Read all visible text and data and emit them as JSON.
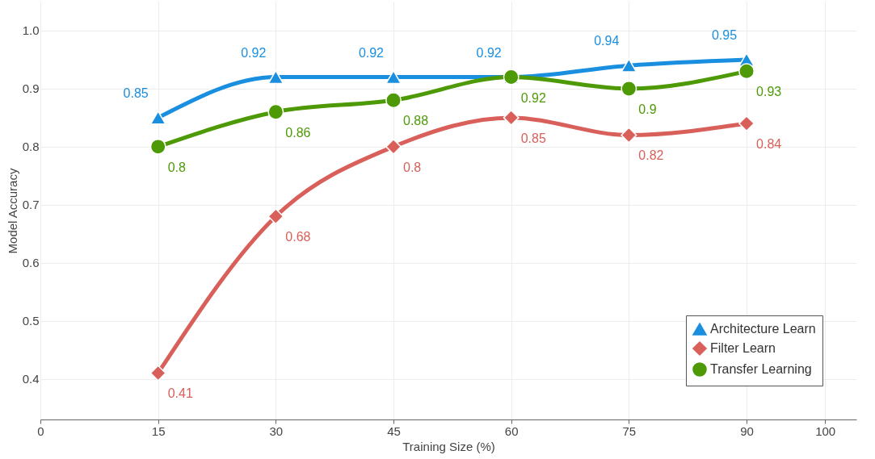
{
  "chart_data": {
    "type": "line",
    "xlabel": "Training Size (%)",
    "ylabel": "Model Accuracy",
    "x": [
      15,
      30,
      45,
      60,
      75,
      90
    ],
    "series": [
      {
        "name": "Architecture Learn",
        "color": "#1a8fe0",
        "marker": "triangle",
        "values": [
          0.85,
          0.92,
          0.92,
          0.92,
          0.94,
          0.95
        ]
      },
      {
        "name": "Filter Learn",
        "color": "#d9605a",
        "marker": "diamond",
        "values": [
          0.41,
          0.68,
          0.8,
          0.85,
          0.82,
          0.84
        ]
      },
      {
        "name": "Transfer Learning",
        "color": "#4e9a06",
        "marker": "circle",
        "values": [
          0.8,
          0.86,
          0.88,
          0.92,
          0.9,
          0.93
        ]
      }
    ],
    "xlim": [
      0,
      104
    ],
    "xticks": [
      0,
      15,
      30,
      45,
      60,
      75,
      90,
      100
    ],
    "ylim": [
      0.33,
      1.05
    ],
    "yticks": [
      0.4,
      0.5,
      0.6,
      0.7,
      0.8,
      0.9,
      {
        "value": 1,
        "label": "1.0"
      }
    ],
    "grid": true,
    "legend": "bottom right",
    "data_labels": true,
    "line_style": "solid"
  }
}
